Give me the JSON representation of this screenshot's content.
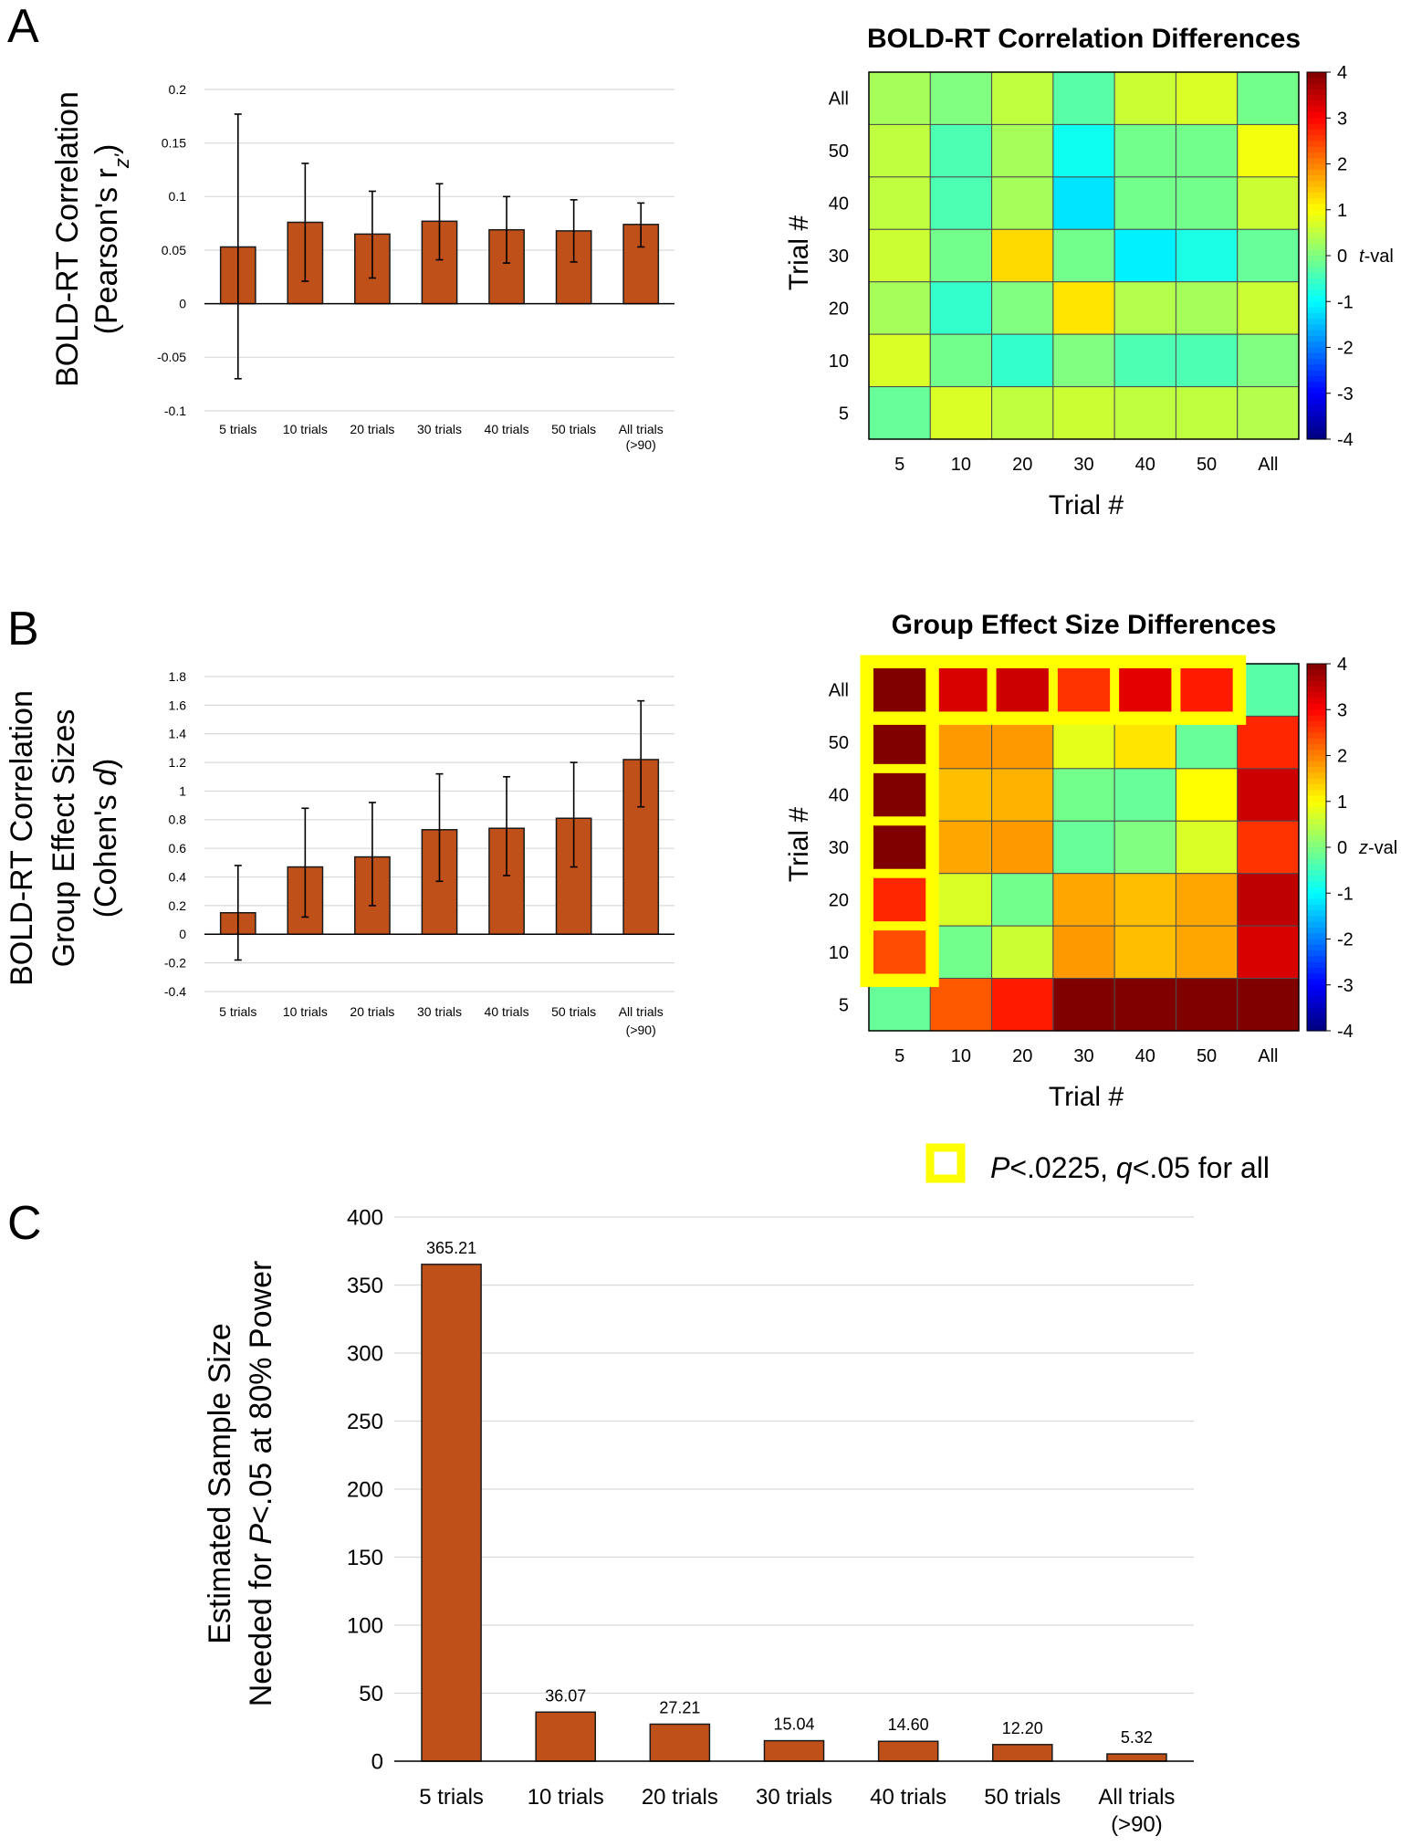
{
  "panel_labels": {
    "a": "A",
    "b": "B",
    "c": "C"
  },
  "x_categories": [
    "5 trials",
    "10 trials",
    "20 trials",
    "30 trials",
    "40 trials",
    "50 trials",
    "All trials",
    "(>90)"
  ],
  "heat_ticks": [
    "5",
    "10",
    "20",
    "30",
    "40",
    "50",
    "All"
  ],
  "trial_axis_label": "Trial #",
  "legend": {
    "part1": "P",
    "part2": "<.0225, ",
    "part3": "q",
    "part4": "<.05 for all",
    "highlight_color": "#ffff00"
  },
  "colors": {
    "bar_fill": "#c0501a",
    "bar_stroke": "#1a1a1a",
    "grid": "#d9d9d9"
  },
  "colorbar": {
    "ticks": [
      "4",
      "3",
      "2",
      "1",
      "0",
      "-1",
      "-2",
      "-3",
      "-4"
    ],
    "range": [
      -4,
      4
    ]
  },
  "ylabels": {
    "a_line1": "BOLD-RT Correlation",
    "a_line2_pre": "(Pearson's r",
    "a_line2_sub": "z'",
    "a_line2_post": ")",
    "b_line1": "BOLD-RT Correlation",
    "b_line2": "Group Effect Sizes",
    "b_line3_pre": "(Cohen's ",
    "b_line3_it": "d",
    "b_line3_post": ")",
    "c_line1": "Estimated Sample Size",
    "c_line2_pre": "Needed for ",
    "c_line2_it": "P",
    "c_line2_post": "<.05 at 80% Power"
  },
  "chart_data": [
    {
      "id": "A_bar",
      "type": "bar",
      "categories": [
        "5 trials",
        "10 trials",
        "20 trials",
        "30 trials",
        "40 trials",
        "50 trials",
        "All trials (>90)"
      ],
      "values": [
        0.053,
        0.076,
        0.065,
        0.077,
        0.069,
        0.068,
        0.074
      ],
      "error_lower": [
        -0.07,
        0.021,
        0.024,
        0.041,
        0.038,
        0.039,
        0.053
      ],
      "error_upper": [
        0.177,
        0.131,
        0.105,
        0.112,
        0.1,
        0.097,
        0.094
      ],
      "title": "",
      "xlabel": "",
      "ylabel": "BOLD-RT Correlation (Pearson's r_z')",
      "ylim": [
        -0.1,
        0.2
      ],
      "yticks": [
        0.2,
        0.15,
        0.1,
        0.05,
        0,
        -0.05,
        -0.1
      ],
      "ytick_labels": [
        "0.2",
        "0.15",
        "0.1",
        "0.05",
        "0",
        "-0.05",
        "-0.1"
      ],
      "grid": true
    },
    {
      "id": "A_heat",
      "type": "heatmap",
      "title": "BOLD-RT Correlation Differences",
      "xlabel": "Trial #",
      "ylabel": "Trial #",
      "x_categories": [
        "5",
        "10",
        "20",
        "30",
        "40",
        "50",
        "All"
      ],
      "y_categories_top_to_bottom": [
        "All",
        "50",
        "40",
        "30",
        "20",
        "10",
        "5"
      ],
      "values": [
        [
          0.3,
          0.0,
          0.5,
          -0.3,
          0.6,
          0.7,
          -0.1
        ],
        [
          0.5,
          -0.4,
          0.3,
          -0.9,
          -0.1,
          -0.1,
          0.9
        ],
        [
          0.5,
          -0.4,
          0.3,
          -1.2,
          -0.1,
          -0.1,
          0.6
        ],
        [
          0.6,
          -0.1,
          1.3,
          -0.1,
          -1.1,
          -0.8,
          -0.2
        ],
        [
          0.3,
          -0.6,
          0.0,
          1.2,
          0.4,
          0.3,
          0.6
        ],
        [
          0.7,
          -0.1,
          -0.6,
          0.0,
          -0.4,
          -0.4,
          0.0
        ],
        [
          -0.2,
          0.7,
          0.5,
          0.6,
          0.5,
          0.5,
          0.4
        ]
      ],
      "colorbar_label": "t-val",
      "colorbar_range": [
        -4,
        4
      ]
    },
    {
      "id": "B_bar",
      "type": "bar",
      "categories": [
        "5 trials",
        "10 trials",
        "20 trials",
        "30 trials",
        "40 trials",
        "50 trials",
        "All trials (>90)"
      ],
      "values": [
        0.15,
        0.47,
        0.54,
        0.73,
        0.74,
        0.81,
        1.22
      ],
      "error_lower": [
        -0.18,
        0.12,
        0.2,
        0.37,
        0.41,
        0.47,
        0.89
      ],
      "error_upper": [
        0.48,
        0.88,
        0.92,
        1.12,
        1.1,
        1.2,
        1.63
      ],
      "title": "",
      "xlabel": "",
      "ylabel": "BOLD-RT Correlation Group Effect Sizes (Cohen's d)",
      "ylim": [
        -0.4,
        1.8
      ],
      "yticks": [
        1.8,
        1.6,
        1.4,
        1.2,
        1,
        0.8,
        0.6,
        0.4,
        0.2,
        0,
        -0.2,
        -0.4
      ],
      "ytick_labels": [
        "1.8",
        "1.6",
        "1.4",
        "1.2",
        "1",
        "0.8",
        "0.6",
        "0.4",
        "0.2",
        "0",
        "-0.2",
        "-0.4"
      ],
      "grid": true
    },
    {
      "id": "B_heat",
      "type": "heatmap",
      "title": "Group Effect Size Differences",
      "xlabel": "Trial #",
      "ylabel": "Trial #",
      "x_categories": [
        "5",
        "10",
        "20",
        "30",
        "40",
        "50",
        "All"
      ],
      "y_categories_top_to_bottom": [
        "All",
        "50",
        "40",
        "30",
        "20",
        "10",
        "5"
      ],
      "values": [
        [
          4.0,
          3.3,
          3.4,
          2.6,
          3.2,
          2.8,
          -0.3
        ],
        [
          4.0,
          1.8,
          1.8,
          0.8,
          1.2,
          -0.2,
          2.7
        ],
        [
          4.0,
          1.5,
          1.6,
          -0.1,
          -0.2,
          1.0,
          3.4
        ],
        [
          4.0,
          1.7,
          1.8,
          -0.2,
          0.0,
          0.7,
          2.6
        ],
        [
          2.7,
          0.7,
          -0.1,
          1.7,
          1.5,
          1.7,
          3.5
        ],
        [
          2.4,
          -0.1,
          0.6,
          1.8,
          1.5,
          1.7,
          3.3
        ],
        [
          -0.2,
          2.3,
          2.8,
          4.0,
          4.0,
          4.0,
          4.0
        ]
      ],
      "highlighted_cells": [
        [
          0,
          0
        ],
        [
          0,
          1
        ],
        [
          0,
          2
        ],
        [
          0,
          3
        ],
        [
          0,
          4
        ],
        [
          0,
          5
        ],
        [
          1,
          0
        ],
        [
          2,
          0
        ],
        [
          3,
          0
        ],
        [
          4,
          0
        ],
        [
          5,
          0
        ]
      ],
      "colorbar_label": "z-val",
      "colorbar_range": [
        -4,
        4
      ]
    },
    {
      "id": "C_bar",
      "type": "bar",
      "categories": [
        "5 trials",
        "10 trials",
        "20 trials",
        "30 trials",
        "40 trials",
        "50 trials",
        "All trials (>90)"
      ],
      "values": [
        365.21,
        36.07,
        27.21,
        15.04,
        14.6,
        12.2,
        5.32
      ],
      "data_labels": [
        "365.21",
        "36.07",
        "27.21",
        "15.04",
        "14.60",
        "12.20",
        "5.32"
      ],
      "title": "",
      "xlabel": "",
      "ylabel": "Estimated Sample Size Needed for P<.05 at 80% Power",
      "ylim": [
        0,
        400
      ],
      "yticks": [
        400,
        350,
        300,
        250,
        200,
        150,
        100,
        50,
        0
      ],
      "ytick_labels": [
        "400",
        "350",
        "300",
        "250",
        "200",
        "150",
        "100",
        "50",
        "0"
      ],
      "grid": true
    }
  ]
}
